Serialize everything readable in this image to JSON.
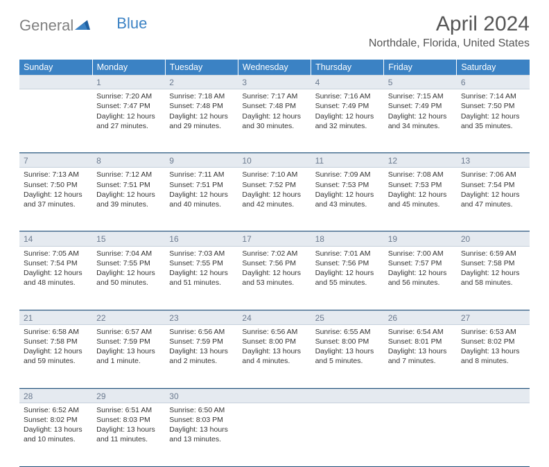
{
  "logo": {
    "text1": "General",
    "text2": "Blue"
  },
  "title": "April 2024",
  "location": "Northdale, Florida, United States",
  "colors": {
    "header_bg": "#3b82c4",
    "header_text": "#ffffff",
    "daynum_bg": "#e5eaf0",
    "daynum_text": "#6b7a8f",
    "week_border": "#1e4e79",
    "body_text": "#333333",
    "logo_gray": "#808080",
    "logo_blue": "#3b82c4"
  },
  "day_headers": [
    "Sunday",
    "Monday",
    "Tuesday",
    "Wednesday",
    "Thursday",
    "Friday",
    "Saturday"
  ],
  "weeks": [
    {
      "nums": [
        "",
        "1",
        "2",
        "3",
        "4",
        "5",
        "6"
      ],
      "cells": [
        [],
        [
          "Sunrise: 7:20 AM",
          "Sunset: 7:47 PM",
          "Daylight: 12 hours",
          "and 27 minutes."
        ],
        [
          "Sunrise: 7:18 AM",
          "Sunset: 7:48 PM",
          "Daylight: 12 hours",
          "and 29 minutes."
        ],
        [
          "Sunrise: 7:17 AM",
          "Sunset: 7:48 PM",
          "Daylight: 12 hours",
          "and 30 minutes."
        ],
        [
          "Sunrise: 7:16 AM",
          "Sunset: 7:49 PM",
          "Daylight: 12 hours",
          "and 32 minutes."
        ],
        [
          "Sunrise: 7:15 AM",
          "Sunset: 7:49 PM",
          "Daylight: 12 hours",
          "and 34 minutes."
        ],
        [
          "Sunrise: 7:14 AM",
          "Sunset: 7:50 PM",
          "Daylight: 12 hours",
          "and 35 minutes."
        ]
      ]
    },
    {
      "nums": [
        "7",
        "8",
        "9",
        "10",
        "11",
        "12",
        "13"
      ],
      "cells": [
        [
          "Sunrise: 7:13 AM",
          "Sunset: 7:50 PM",
          "Daylight: 12 hours",
          "and 37 minutes."
        ],
        [
          "Sunrise: 7:12 AM",
          "Sunset: 7:51 PM",
          "Daylight: 12 hours",
          "and 39 minutes."
        ],
        [
          "Sunrise: 7:11 AM",
          "Sunset: 7:51 PM",
          "Daylight: 12 hours",
          "and 40 minutes."
        ],
        [
          "Sunrise: 7:10 AM",
          "Sunset: 7:52 PM",
          "Daylight: 12 hours",
          "and 42 minutes."
        ],
        [
          "Sunrise: 7:09 AM",
          "Sunset: 7:53 PM",
          "Daylight: 12 hours",
          "and 43 minutes."
        ],
        [
          "Sunrise: 7:08 AM",
          "Sunset: 7:53 PM",
          "Daylight: 12 hours",
          "and 45 minutes."
        ],
        [
          "Sunrise: 7:06 AM",
          "Sunset: 7:54 PM",
          "Daylight: 12 hours",
          "and 47 minutes."
        ]
      ]
    },
    {
      "nums": [
        "14",
        "15",
        "16",
        "17",
        "18",
        "19",
        "20"
      ],
      "cells": [
        [
          "Sunrise: 7:05 AM",
          "Sunset: 7:54 PM",
          "Daylight: 12 hours",
          "and 48 minutes."
        ],
        [
          "Sunrise: 7:04 AM",
          "Sunset: 7:55 PM",
          "Daylight: 12 hours",
          "and 50 minutes."
        ],
        [
          "Sunrise: 7:03 AM",
          "Sunset: 7:55 PM",
          "Daylight: 12 hours",
          "and 51 minutes."
        ],
        [
          "Sunrise: 7:02 AM",
          "Sunset: 7:56 PM",
          "Daylight: 12 hours",
          "and 53 minutes."
        ],
        [
          "Sunrise: 7:01 AM",
          "Sunset: 7:56 PM",
          "Daylight: 12 hours",
          "and 55 minutes."
        ],
        [
          "Sunrise: 7:00 AM",
          "Sunset: 7:57 PM",
          "Daylight: 12 hours",
          "and 56 minutes."
        ],
        [
          "Sunrise: 6:59 AM",
          "Sunset: 7:58 PM",
          "Daylight: 12 hours",
          "and 58 minutes."
        ]
      ]
    },
    {
      "nums": [
        "21",
        "22",
        "23",
        "24",
        "25",
        "26",
        "27"
      ],
      "cells": [
        [
          "Sunrise: 6:58 AM",
          "Sunset: 7:58 PM",
          "Daylight: 12 hours",
          "and 59 minutes."
        ],
        [
          "Sunrise: 6:57 AM",
          "Sunset: 7:59 PM",
          "Daylight: 13 hours",
          "and 1 minute."
        ],
        [
          "Sunrise: 6:56 AM",
          "Sunset: 7:59 PM",
          "Daylight: 13 hours",
          "and 2 minutes."
        ],
        [
          "Sunrise: 6:56 AM",
          "Sunset: 8:00 PM",
          "Daylight: 13 hours",
          "and 4 minutes."
        ],
        [
          "Sunrise: 6:55 AM",
          "Sunset: 8:00 PM",
          "Daylight: 13 hours",
          "and 5 minutes."
        ],
        [
          "Sunrise: 6:54 AM",
          "Sunset: 8:01 PM",
          "Daylight: 13 hours",
          "and 7 minutes."
        ],
        [
          "Sunrise: 6:53 AM",
          "Sunset: 8:02 PM",
          "Daylight: 13 hours",
          "and 8 minutes."
        ]
      ]
    },
    {
      "nums": [
        "28",
        "29",
        "30",
        "",
        "",
        "",
        ""
      ],
      "cells": [
        [
          "Sunrise: 6:52 AM",
          "Sunset: 8:02 PM",
          "Daylight: 13 hours",
          "and 10 minutes."
        ],
        [
          "Sunrise: 6:51 AM",
          "Sunset: 8:03 PM",
          "Daylight: 13 hours",
          "and 11 minutes."
        ],
        [
          "Sunrise: 6:50 AM",
          "Sunset: 8:03 PM",
          "Daylight: 13 hours",
          "and 13 minutes."
        ],
        [],
        [],
        [],
        []
      ]
    }
  ]
}
